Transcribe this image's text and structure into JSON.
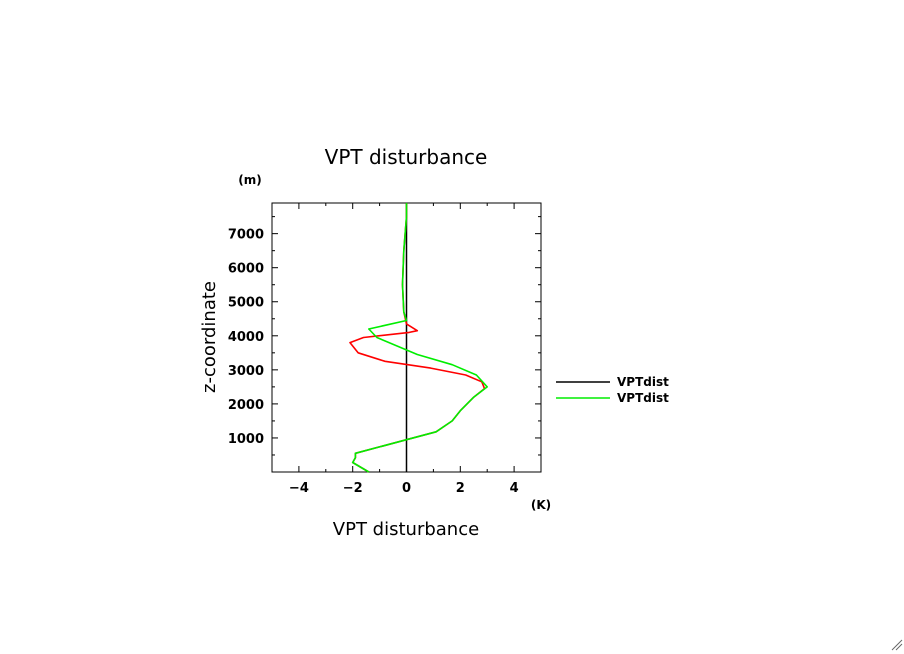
{
  "chart_data": {
    "type": "line",
    "title": "VPT disturbance",
    "xlabel": "VPT disturbance",
    "ylabel": "z-coordinate",
    "x_unit": "(K)",
    "y_unit": "(m)",
    "xlim": [
      -5,
      5
    ],
    "ylim": [
      0,
      7900
    ],
    "xticks": [
      -4,
      -2,
      0,
      2,
      4
    ],
    "yticks": [
      1000,
      2000,
      3000,
      4000,
      5000,
      6000,
      7000
    ],
    "grid": false,
    "legend_position": "right",
    "reference_line": {
      "name": "VPTdist",
      "x": 0,
      "color": "#000000"
    },
    "series": [
      {
        "name": "VPTdist",
        "color": "#ff0000",
        "points": [
          [
            -1.4,
            0
          ],
          [
            -2.0,
            280
          ],
          [
            -1.9,
            420
          ],
          [
            -1.9,
            550
          ],
          [
            0.0,
            950
          ],
          [
            1.1,
            1180
          ],
          [
            1.7,
            1500
          ],
          [
            2.0,
            1800
          ],
          [
            2.5,
            2200
          ],
          [
            2.9,
            2450
          ],
          [
            2.8,
            2650
          ],
          [
            2.2,
            2850
          ],
          [
            0.9,
            3050
          ],
          [
            -0.8,
            3250
          ],
          [
            -1.8,
            3500
          ],
          [
            -2.1,
            3800
          ],
          [
            -1.6,
            3950
          ],
          [
            0.1,
            4100
          ],
          [
            0.4,
            4150
          ],
          [
            0.0,
            4350
          ],
          [
            -0.1,
            4700
          ],
          [
            -0.15,
            5500
          ],
          [
            -0.1,
            6500
          ],
          [
            0.0,
            7500
          ],
          [
            0.0,
            7900
          ]
        ]
      },
      {
        "name": "VPTdist",
        "color": "#00ee00",
        "points": [
          [
            -1.4,
            0
          ],
          [
            -2.0,
            280
          ],
          [
            -1.9,
            420
          ],
          [
            -1.9,
            550
          ],
          [
            0.0,
            950
          ],
          [
            1.1,
            1180
          ],
          [
            1.7,
            1500
          ],
          [
            2.0,
            1800
          ],
          [
            2.5,
            2200
          ],
          [
            3.0,
            2500
          ],
          [
            2.6,
            2850
          ],
          [
            1.7,
            3150
          ],
          [
            0.4,
            3450
          ],
          [
            -1.1,
            3950
          ],
          [
            -1.4,
            4200
          ],
          [
            0.0,
            4450
          ],
          [
            -0.1,
            4700
          ],
          [
            -0.15,
            5500
          ],
          [
            -0.1,
            6500
          ],
          [
            0.0,
            7500
          ],
          [
            0.0,
            7900
          ]
        ]
      }
    ],
    "legend": [
      {
        "label": "VPTdist",
        "color": "#000000"
      },
      {
        "label": "VPTdist",
        "color": "#00ee00"
      }
    ]
  }
}
